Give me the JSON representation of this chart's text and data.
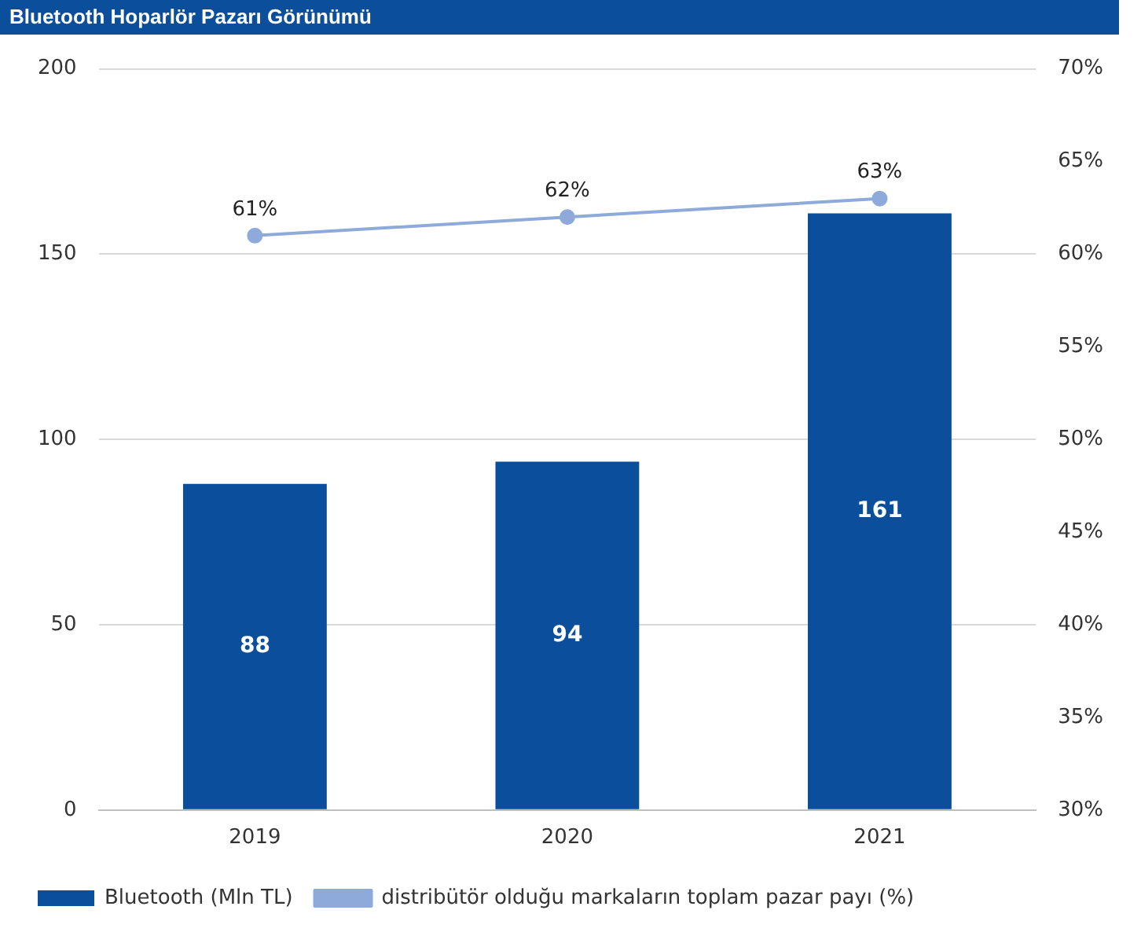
{
  "chart_data": {
    "type": "bar",
    "title": "Bluetooth Hoparlör Pazarı Görünümü",
    "categories": [
      "2019",
      "2020",
      "2021"
    ],
    "series": [
      {
        "name": "Bluetooth (Mln TL)",
        "color": "#0b4f9c",
        "values": [
          88,
          94,
          161
        ],
        "value_labels": [
          "88",
          "94",
          "161"
        ]
      },
      {
        "name": "distribütör olduğu markaların toplam pazar payı (%)",
        "type": "line",
        "axis": "y2",
        "color": "#8eaadb",
        "values": [
          61,
          62,
          63
        ],
        "value_labels": [
          "61%",
          "62%",
          "63%"
        ]
      }
    ],
    "ylim": [
      0,
      200
    ],
    "yticks": [
      0,
      50,
      100,
      150,
      200
    ],
    "y2lim": [
      30,
      70
    ],
    "y2ticks": [
      {
        "value": 30,
        "label": "30%"
      },
      {
        "value": 35,
        "label": "35%"
      },
      {
        "value": 40,
        "label": "40%"
      },
      {
        "value": 45,
        "label": "45%"
      },
      {
        "value": 50,
        "label": "50%"
      },
      {
        "value": 55,
        "label": "55%"
      },
      {
        "value": 60,
        "label": "60%"
      },
      {
        "value": 65,
        "label": "65%"
      },
      {
        "value": 70,
        "label": "70%"
      }
    ],
    "grid": "y",
    "legend": "bottom",
    "marker": "circle",
    "line_style": "solid"
  }
}
